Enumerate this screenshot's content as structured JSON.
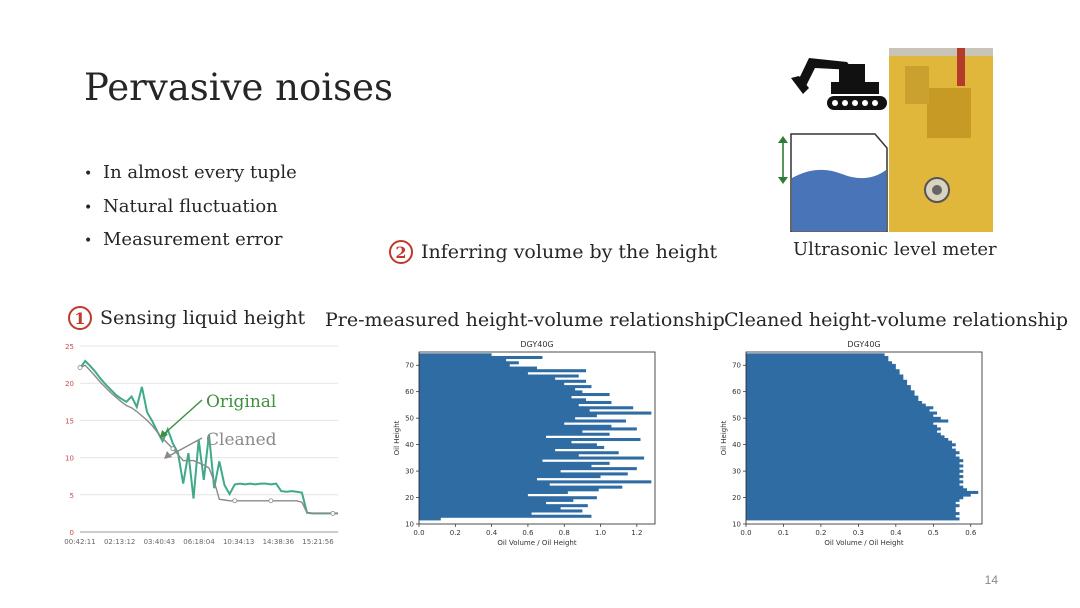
{
  "slide": {
    "title": "Pervasive noises",
    "bullets": [
      "In almost every tuple",
      "Natural fluctuation",
      "Measurement error"
    ],
    "page_number": "14"
  },
  "steps": [
    {
      "number": "1",
      "text": "Sensing liquid height"
    },
    {
      "number": "2",
      "text": "Inferring volume by the height"
    }
  ],
  "photo": {
    "caption": "Ultrasonic level meter",
    "accent_color": "#e0b73a",
    "tank_color": "#4a74b8"
  },
  "panel_titles": {
    "premeasured": "Pre-measured height-volume relationship",
    "cleaned": "Cleaned height-volume relationship"
  },
  "chart_data": [
    {
      "type": "line",
      "title": "",
      "xlabel": "",
      "ylabel": "",
      "ylim": [
        0,
        25
      ],
      "yticks": [
        "0",
        "5",
        "10",
        "15",
        "20",
        "25"
      ],
      "xticks": [
        "00:42:11",
        "02:13:12",
        "03:40:43",
        "06:18:04",
        "10:34:13",
        "14:38:36",
        "15:21:56"
      ],
      "annotations": [
        "Original",
        "Cleaned"
      ],
      "series": [
        {
          "name": "Original",
          "color": "#3fa98a",
          "values": [
            22,
            23,
            22.3,
            21.5,
            20.6,
            19.8,
            19.1,
            18.4,
            17.9,
            17.5,
            18.2,
            16.8,
            19.5,
            16.1,
            14.9,
            13.5,
            12.2,
            13.8,
            11.9,
            10.6,
            6.5,
            10.6,
            4.5,
            12.4,
            7.0,
            13.1,
            5.9,
            9.5,
            6.3,
            5.1,
            6.4,
            6.5,
            6.4,
            6.5,
            6.4,
            6.5,
            6.5,
            6.4,
            6.5,
            5.5,
            5.4,
            5.5,
            5.4,
            5.3,
            2.6,
            2.5,
            2.5,
            2.5,
            2.5,
            2.5,
            2.5
          ]
        },
        {
          "name": "Cleaned",
          "color": "#8a8a8a",
          "values": [
            22.1,
            22.4,
            21.7,
            20.9,
            20.1,
            19.4,
            18.7,
            18.1,
            17.5,
            17.0,
            16.7,
            16.2,
            15.6,
            15.0,
            14.3,
            13.4,
            12.6,
            11.9,
            11.2,
            10.4,
            9.6,
            9.6,
            9.6,
            9.3,
            9.0,
            8.6,
            6.8,
            4.4,
            4.3,
            4.2,
            4.2,
            4.2,
            4.2,
            4.2,
            4.2,
            4.2,
            4.2,
            4.2,
            4.2,
            4.2,
            4.2,
            4.2,
            4.2,
            4.0,
            2.6,
            2.5,
            2.5,
            2.5,
            2.5,
            2.5,
            2.5
          ]
        }
      ]
    },
    {
      "type": "bar",
      "orientation": "horizontal",
      "title": "DGY40G",
      "xlabel": "Oil Volume / Oil Height",
      "ylabel": "Oil Height",
      "xlim": [
        0,
        1.3
      ],
      "ylim": [
        10,
        75
      ],
      "xticks": [
        "0.0",
        "0.2",
        "0.4",
        "0.6",
        "0.8",
        "1.0",
        "1.2"
      ],
      "yticks": [
        "10",
        "20",
        "30",
        "40",
        "50",
        "60",
        "70"
      ],
      "color": "#2f6ca3",
      "heights": [
        12,
        13,
        14,
        15,
        16,
        17,
        18,
        19,
        20,
        21,
        22,
        23,
        24,
        25,
        26,
        27,
        28,
        29,
        30,
        31,
        32,
        33,
        34,
        35,
        36,
        37,
        38,
        39,
        40,
        41,
        42,
        43,
        44,
        45,
        46,
        47,
        48,
        49,
        50,
        51,
        52,
        53,
        54,
        55,
        56,
        57,
        58,
        59,
        60,
        61,
        62,
        63,
        64,
        65,
        66,
        67,
        68,
        69,
        70,
        71,
        72,
        73,
        74
      ],
      "values": [
        0.12,
        0.95,
        0.62,
        0.9,
        0.78,
        0.93,
        0.7,
        0.85,
        0.98,
        0.6,
        0.82,
        0.99,
        1.12,
        0.72,
        1.28,
        0.65,
        1.0,
        1.15,
        0.78,
        1.2,
        0.95,
        1.05,
        0.68,
        1.24,
        0.88,
        1.1,
        0.75,
        1.02,
        0.98,
        0.84,
        1.22,
        0.7,
        1.05,
        0.9,
        1.2,
        1.06,
        0.8,
        1.14,
        0.86,
        0.98,
        1.28,
        0.94,
        1.18,
        0.88,
        1.06,
        0.92,
        0.84,
        1.05,
        0.9,
        0.86,
        0.95,
        0.8,
        0.92,
        0.75,
        0.88,
        0.6,
        0.92,
        0.65,
        0.5,
        0.55,
        0.48,
        0.68,
        0.4
      ]
    },
    {
      "type": "bar",
      "orientation": "horizontal",
      "title": "DGY40G",
      "xlabel": "Oil Volume / Oil Height",
      "ylabel": "Oil Height",
      "xlim": [
        0,
        0.63
      ],
      "ylim": [
        10,
        75
      ],
      "xticks": [
        "0.0",
        "0.1",
        "0.2",
        "0.3",
        "0.4",
        "0.5",
        "0.6"
      ],
      "yticks": [
        "10",
        "20",
        "30",
        "40",
        "50",
        "60",
        "70"
      ],
      "color": "#2f6ca3",
      "heights": [
        12,
        13,
        14,
        15,
        16,
        17,
        18,
        19,
        20,
        21,
        22,
        23,
        24,
        25,
        26,
        27,
        28,
        29,
        30,
        31,
        32,
        33,
        34,
        35,
        36,
        37,
        38,
        39,
        40,
        41,
        42,
        43,
        44,
        45,
        46,
        47,
        48,
        49,
        50,
        51,
        52,
        53,
        54,
        55,
        56,
        57,
        58,
        59,
        60,
        61,
        62,
        63,
        64,
        65,
        66,
        67,
        68,
        69,
        70,
        71,
        72,
        73,
        74
      ],
      "values": [
        0.57,
        0.56,
        0.57,
        0.56,
        0.56,
        0.57,
        0.56,
        0.57,
        0.58,
        0.6,
        0.62,
        0.59,
        0.58,
        0.57,
        0.58,
        0.57,
        0.58,
        0.57,
        0.58,
        0.57,
        0.58,
        0.57,
        0.58,
        0.57,
        0.56,
        0.57,
        0.56,
        0.55,
        0.56,
        0.55,
        0.54,
        0.53,
        0.52,
        0.51,
        0.52,
        0.51,
        0.5,
        0.54,
        0.52,
        0.5,
        0.51,
        0.49,
        0.5,
        0.48,
        0.47,
        0.46,
        0.46,
        0.45,
        0.45,
        0.44,
        0.44,
        0.43,
        0.43,
        0.42,
        0.42,
        0.41,
        0.41,
        0.4,
        0.4,
        0.39,
        0.38,
        0.38,
        0.37
      ]
    }
  ]
}
